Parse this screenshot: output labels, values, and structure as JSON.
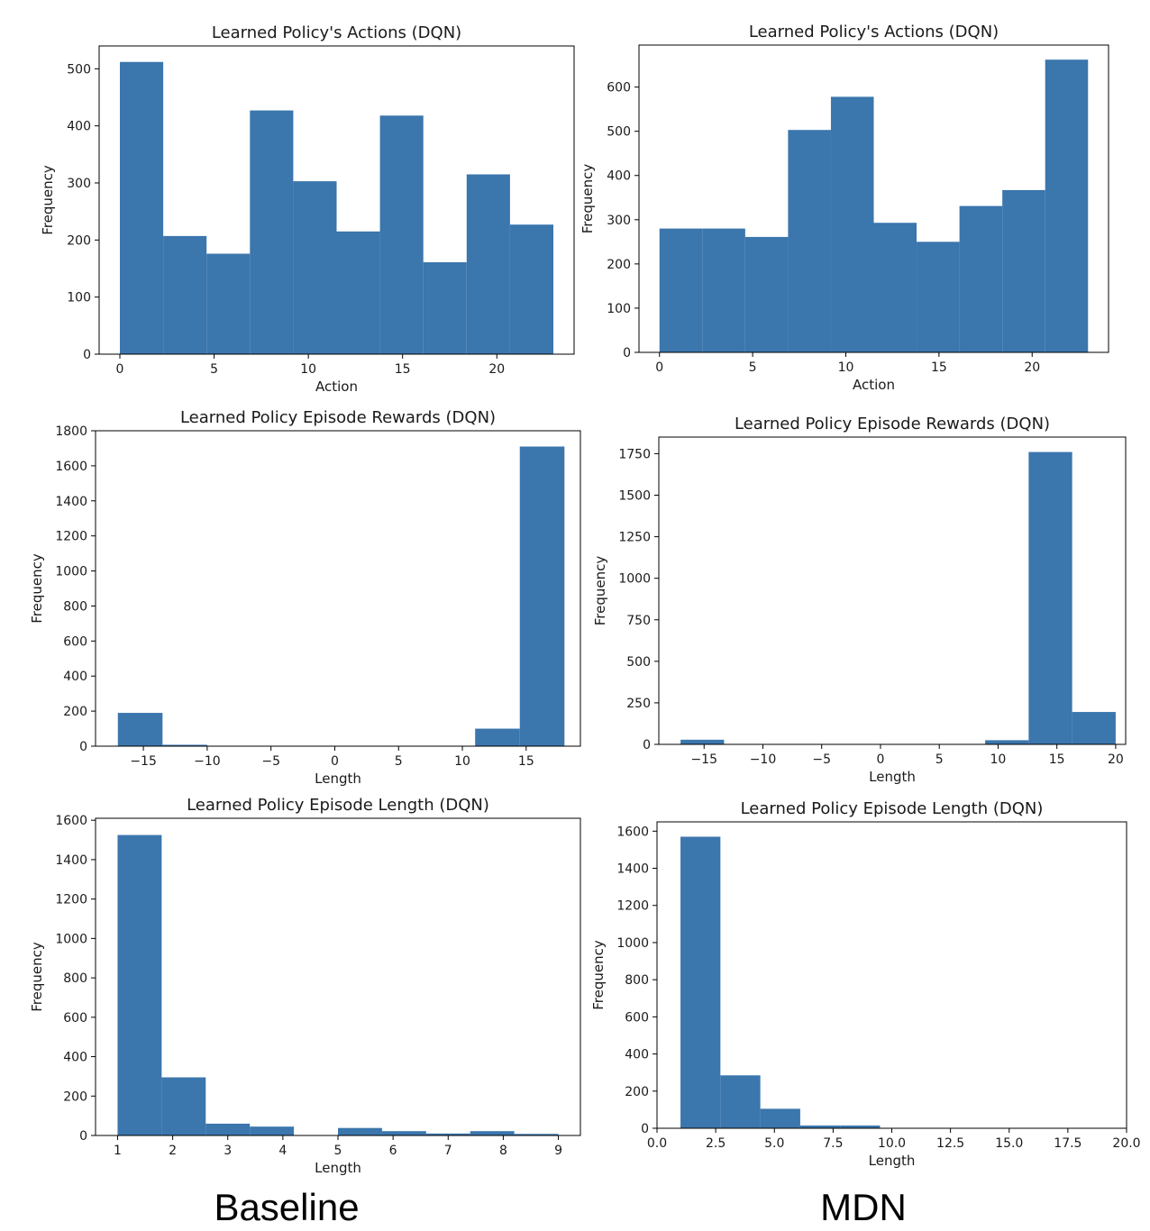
{
  "captions": {
    "left": "Baseline",
    "right": "MDN"
  },
  "bar_color": "#3b76ad",
  "chart_data": [
    {
      "type": "bar",
      "title": "Learned Policy's Actions (DQN)",
      "xlabel": "Action",
      "ylabel": "Frequency",
      "xlim": [
        -1.1,
        24.1
      ],
      "ylim": [
        0,
        540
      ],
      "xticks": [
        0,
        5,
        10,
        15,
        20
      ],
      "xtick_labels": [
        "0",
        "5",
        "10",
        "15",
        "20"
      ],
      "yticks": [
        0,
        100,
        200,
        300,
        400,
        500
      ],
      "ytick_labels": [
        "0",
        "100",
        "200",
        "300",
        "400",
        "500"
      ],
      "bin_edges": [
        0,
        2.3,
        4.6,
        6.9,
        9.2,
        11.5,
        13.8,
        16.1,
        18.4,
        20.7,
        23
      ],
      "values": [
        512,
        207,
        176,
        427,
        303,
        215,
        418,
        161,
        315,
        227
      ]
    },
    {
      "type": "bar",
      "title": "Learned Policy's Actions (DQN)",
      "xlabel": "Action",
      "ylabel": "Frequency",
      "xlim": [
        -1.1,
        24.1
      ],
      "ylim": [
        0,
        695
      ],
      "xticks": [
        0,
        5,
        10,
        15,
        20
      ],
      "xtick_labels": [
        "0",
        "5",
        "10",
        "15",
        "20"
      ],
      "yticks": [
        0,
        100,
        200,
        300,
        400,
        500,
        600
      ],
      "ytick_labels": [
        "0",
        "100",
        "200",
        "300",
        "400",
        "500",
        "600"
      ],
      "bin_edges": [
        0,
        2.3,
        4.6,
        6.9,
        9.2,
        11.5,
        13.8,
        16.1,
        18.4,
        20.7,
        23
      ],
      "values": [
        280,
        280,
        261,
        503,
        578,
        293,
        250,
        331,
        367,
        662
      ]
    },
    {
      "type": "bar",
      "title": "Learned Policy Episode Rewards (DQN)",
      "xlabel": "Length",
      "ylabel": "Frequency",
      "xlim": [
        -18.75,
        19.25
      ],
      "ylim": [
        0,
        1800
      ],
      "xticks": [
        -15,
        -10,
        -5,
        0,
        5,
        10,
        15
      ],
      "xtick_labels": [
        "−15",
        "−10",
        "−5",
        "0",
        "5",
        "10",
        "15"
      ],
      "yticks": [
        0,
        200,
        400,
        600,
        800,
        1000,
        1200,
        1400,
        1600,
        1800
      ],
      "ytick_labels": [
        "0",
        "200",
        "400",
        "600",
        "800",
        "1000",
        "1200",
        "1400",
        "1600",
        "1800"
      ],
      "bin_edges": [
        -17,
        -13.5,
        -10,
        -6.5,
        -3,
        0.5,
        4,
        7.5,
        11,
        14.5,
        18
      ],
      "values": [
        190,
        8,
        0,
        0,
        0,
        0,
        0,
        0,
        100,
        1710
      ]
    },
    {
      "type": "bar",
      "title": "Learned Policy Episode Rewards (DQN)",
      "xlabel": "Length",
      "ylabel": "Frequency",
      "xlim": [
        -18.85,
        20.85
      ],
      "ylim": [
        0,
        1850
      ],
      "xticks": [
        -15,
        -10,
        -5,
        0,
        5,
        10,
        15,
        20
      ],
      "xtick_labels": [
        "−15",
        "−10",
        "−5",
        "0",
        "5",
        "10",
        "15",
        "20"
      ],
      "yticks": [
        0,
        250,
        500,
        750,
        1000,
        1250,
        1500,
        1750
      ],
      "ytick_labels": [
        "0",
        "250",
        "500",
        "750",
        "1000",
        "1250",
        "1500",
        "1750"
      ],
      "bin_edges": [
        -17,
        -13.3,
        -9.6,
        -5.9,
        -2.2,
        1.5,
        5.2,
        8.9,
        12.6,
        16.3,
        20
      ],
      "values": [
        28,
        0,
        0,
        0,
        0,
        0,
        0,
        25,
        1760,
        195
      ]
    },
    {
      "type": "bar",
      "title": "Learned Policy Episode Length (DQN)",
      "xlabel": "Length",
      "ylabel": "Frequency",
      "xlim": [
        0.6,
        9.4
      ],
      "ylim": [
        0,
        1610
      ],
      "xticks": [
        1,
        2,
        3,
        4,
        5,
        6,
        7,
        8,
        9
      ],
      "xtick_labels": [
        "1",
        "2",
        "3",
        "4",
        "5",
        "6",
        "7",
        "8",
        "9"
      ],
      "yticks": [
        0,
        200,
        400,
        600,
        800,
        1000,
        1200,
        1400,
        1600
      ],
      "ytick_labels": [
        "0",
        "200",
        "400",
        "600",
        "800",
        "1000",
        "1200",
        "1400",
        "1600"
      ],
      "bin_edges": [
        1,
        1.8,
        2.6,
        3.4,
        4.2,
        5,
        5.8,
        6.6,
        7.4,
        8.2,
        9
      ],
      "values": [
        1525,
        295,
        60,
        45,
        0,
        38,
        22,
        10,
        22,
        8
      ]
    },
    {
      "type": "bar",
      "title": "Learned Policy Episode Length (DQN)",
      "xlabel": "Length",
      "ylabel": "Frequency",
      "xlim": [
        0,
        20
      ],
      "ylim": [
        0,
        1650
      ],
      "xticks": [
        0,
        2.5,
        5,
        7.5,
        10,
        12.5,
        15,
        17.5,
        20
      ],
      "xtick_labels": [
        "0.0",
        "2.5",
        "5.0",
        "7.5",
        "10.0",
        "12.5",
        "15.0",
        "17.5",
        "20.0"
      ],
      "yticks": [
        0,
        200,
        400,
        600,
        800,
        1000,
        1200,
        1400,
        1600
      ],
      "ytick_labels": [
        "0",
        "200",
        "400",
        "600",
        "800",
        "1000",
        "1200",
        "1400",
        "1600"
      ],
      "bin_edges": [
        1,
        2.7,
        4.4,
        6.1,
        7.8,
        9.5
      ],
      "values": [
        1570,
        285,
        105,
        15,
        15
      ]
    }
  ]
}
